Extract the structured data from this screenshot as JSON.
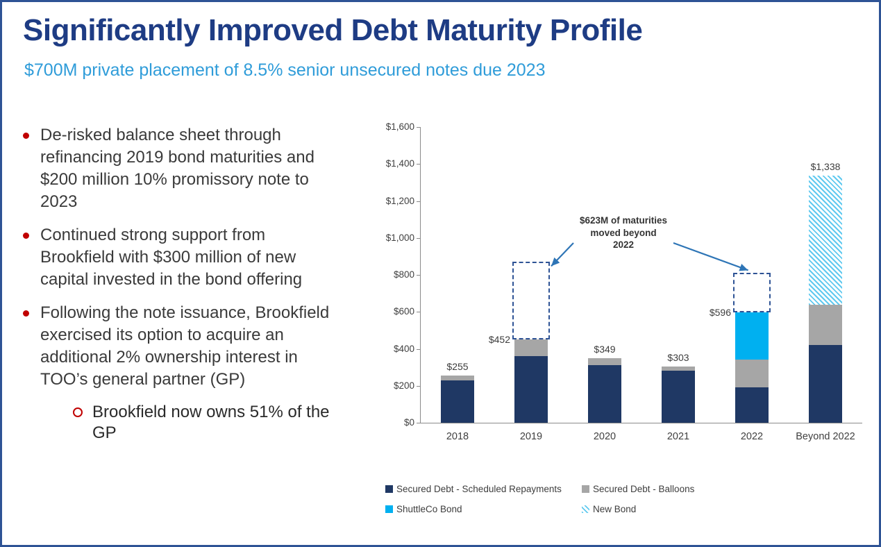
{
  "slide": {
    "title": "Significantly Improved Debt Maturity Profile",
    "subtitle": "$700M private placement of 8.5% senior unsecured notes due 2023"
  },
  "bullets": [
    {
      "text": "De-risked balance sheet through refinancing 2019 bond maturities and $200 million 10% promissory note to 2023"
    },
    {
      "text": "Continued strong support from Brookfield with $300 million of new capital invested in the bond offering"
    },
    {
      "text": "Following the note issuance, Brookfield exercised its option to acquire an additional 2% ownership interest in TOO’s general partner (GP)"
    }
  ],
  "sub_bullet": "Brookfield now owns 51% of the GP",
  "chart_data": {
    "type": "bar",
    "stacked": true,
    "categories": [
      "2018",
      "2019",
      "2020",
      "2021",
      "2022",
      "Beyond 2022"
    ],
    "series": [
      {
        "name": "Secured Debt - Scheduled Repayments",
        "color": "#1F3864",
        "values": [
          230,
          360,
          310,
          280,
          190,
          420
        ]
      },
      {
        "name": "Secured Debt - Balloons",
        "color": "#A6A6A6",
        "values": [
          25,
          92,
          39,
          23,
          150,
          220
        ]
      },
      {
        "name": "ShuttleCo Bond",
        "color": "#00B0F0",
        "values": [
          0,
          0,
          0,
          0,
          256,
          0
        ]
      },
      {
        "name": "New Bond",
        "color": "#7FD4F2",
        "pattern": "hatch",
        "values": [
          0,
          0,
          0,
          0,
          0,
          698
        ]
      }
    ],
    "totals": [
      255,
      452,
      349,
      303,
      596,
      1338
    ],
    "total_labels": [
      "$255",
      "$452",
      "$349",
      "$303",
      "$596",
      "$1,338"
    ],
    "label_placement": [
      "above",
      "left",
      "above",
      "above",
      "left",
      "above"
    ],
    "ylim": [
      0,
      1600
    ],
    "ytick_interval": 200,
    "ytick_labels": [
      "$0",
      "$200",
      "$400",
      "$600",
      "$800",
      "$1,000",
      "$1,200",
      "$1,400",
      "$1,600"
    ],
    "grid": false,
    "legend_position": "bottom",
    "annotation": {
      "text": "$623M of maturities moved beyond 2022",
      "lines": [
        "$623M of maturities",
        "moved beyond",
        "2022"
      ]
    },
    "dashed_boxes": [
      {
        "category": "2019",
        "from": 452,
        "to": 870
      },
      {
        "category": "2022",
        "from": 596,
        "to": 810
      }
    ],
    "colors": {
      "arrow": "#2E75B6",
      "dashed_box": "#2E5395"
    }
  },
  "colors": {
    "title": "#1E3C84",
    "subtitle": "#2F9CD9",
    "bullet_marker": "#C00000",
    "border": "#2E5395"
  }
}
